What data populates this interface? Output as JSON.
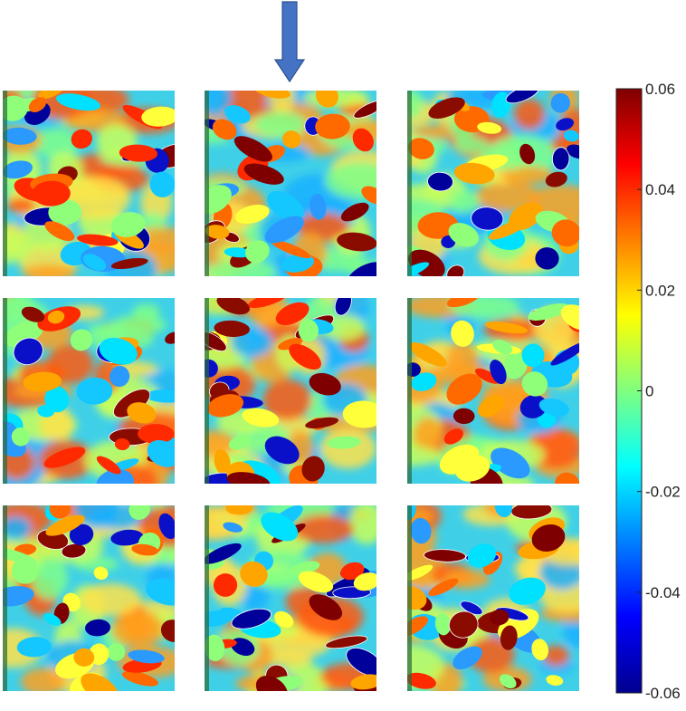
{
  "chart_data": {
    "type": "heatmap",
    "title": "",
    "xlabel": "",
    "ylabel": "",
    "grid": {
      "rows": 3,
      "cols": 3
    },
    "highlighted_panel": {
      "row": 0,
      "col": 1
    },
    "colorbar": {
      "colormap": "jet",
      "range": [
        -0.06,
        0.06
      ],
      "ticks": [
        -0.06,
        -0.04,
        -0.02,
        0,
        0.02,
        0.04,
        0.06
      ],
      "tick_labels": [
        "-0.06",
        "-0.04",
        "-0.02",
        "0",
        "0.02",
        "0.04",
        "0.06"
      ]
    },
    "colors": {
      "arrow": "#4472c4",
      "arrow_stroke": "#2f528f",
      "contour": "#ffffff"
    }
  }
}
